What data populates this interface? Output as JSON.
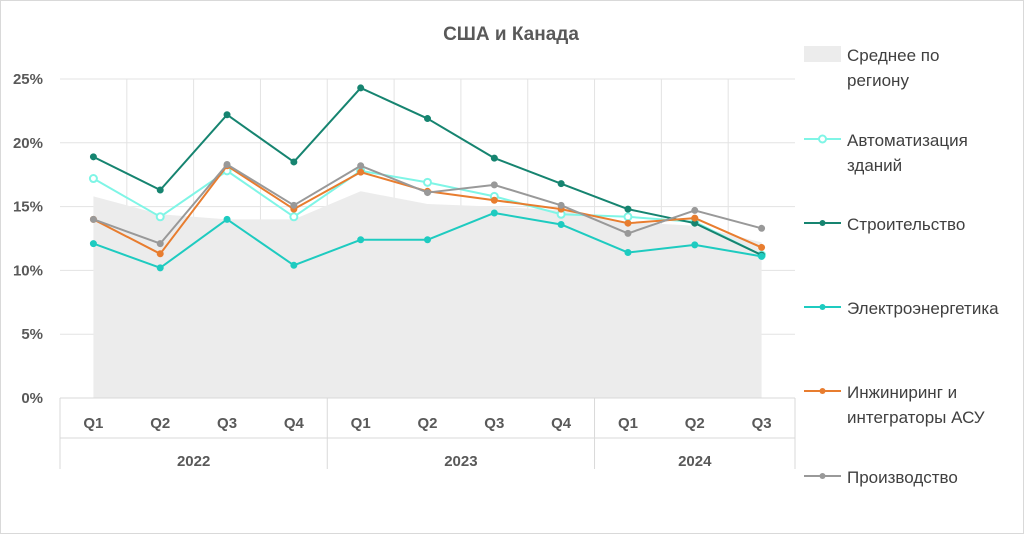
{
  "chart_data": {
    "type": "line",
    "title": "США и Канада",
    "quarters": [
      "Q1",
      "Q2",
      "Q3",
      "Q4",
      "Q1",
      "Q2",
      "Q3",
      "Q4",
      "Q1",
      "Q2",
      "Q3"
    ],
    "years": [
      {
        "label": "2022",
        "quarters": 4
      },
      {
        "label": "2023",
        "quarters": 4
      },
      {
        "label": "2024",
        "quarters": 3
      }
    ],
    "y_ticks": [
      "0%",
      "5%",
      "10%",
      "15%",
      "20%",
      "25%"
    ],
    "ylim": [
      0,
      25
    ],
    "grid": true,
    "legend_position": "right",
    "area": {
      "name_lines": [
        "Среднее по",
        "региону"
      ],
      "color": "#ececec",
      "values": [
        15.8,
        14.4,
        14.0,
        14.0,
        16.2,
        15.2,
        15.0,
        14.7,
        13.8,
        13.5,
        12.2
      ]
    },
    "series": [
      {
        "name_lines": [
          "Автоматизация",
          "зданий"
        ],
        "color": "#7ff5e6",
        "marker": "hollow",
        "values": [
          17.2,
          14.2,
          17.8,
          14.2,
          17.8,
          16.9,
          15.8,
          14.4,
          14.2,
          13.8,
          11.2
        ]
      },
      {
        "name_lines": [
          "Строительство"
        ],
        "color": "#168470",
        "marker": "filled",
        "values": [
          18.9,
          16.3,
          22.2,
          18.5,
          24.3,
          21.9,
          18.8,
          16.8,
          14.8,
          13.7,
          11.2
        ]
      },
      {
        "name_lines": [
          "Электроэнергетика"
        ],
        "color": "#1ecbc0",
        "marker": "filled",
        "values": [
          12.1,
          10.2,
          14.0,
          10.4,
          12.4,
          12.4,
          14.5,
          13.6,
          11.4,
          12.0,
          11.1
        ]
      },
      {
        "name_lines": [
          "Инжиниринг и",
          "интеграторы АСУ"
        ],
        "color": "#e87d2f",
        "marker": "filled",
        "values": [
          14.0,
          11.3,
          18.2,
          14.8,
          17.7,
          16.2,
          15.5,
          14.8,
          13.7,
          14.1,
          11.8
        ]
      },
      {
        "name_lines": [
          "Производство"
        ],
        "color": "#999999",
        "marker": "filled",
        "values": [
          14.0,
          12.1,
          18.3,
          15.1,
          18.2,
          16.1,
          16.7,
          15.1,
          12.9,
          14.7,
          13.3
        ]
      }
    ]
  }
}
